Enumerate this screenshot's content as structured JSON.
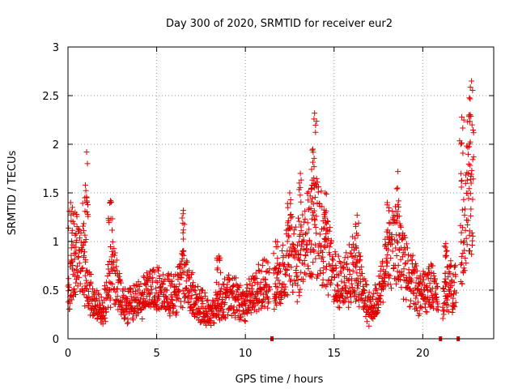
{
  "chart_data": {
    "type": "scatter",
    "title": "Day 300 of 2020, SRMTID for receiver eur2",
    "xlabel": "GPS time / hours",
    "ylabel": "SRMTID / TECUs",
    "xlim": [
      0,
      24
    ],
    "ylim": [
      0,
      3
    ],
    "x_ticks": [
      0,
      5,
      10,
      15,
      20
    ],
    "x_tick_labels": [
      "0",
      "5",
      "10",
      "15",
      "20"
    ],
    "y_ticks": [
      0,
      0.5,
      1,
      1.5,
      2,
      2.5,
      3
    ],
    "y_tick_labels": [
      "0",
      "0.5",
      "1",
      "1.5",
      "2",
      "2.5",
      "3"
    ],
    "grid": true,
    "marker": "+",
    "color": "#e00000",
    "series": [
      {
        "name": "eur2",
        "level_profile": [
          [
            0,
            0.45
          ],
          [
            0.3,
            0.75
          ],
          [
            0.6,
            0.9
          ],
          [
            1.0,
            0.6
          ],
          [
            1.5,
            0.35
          ],
          [
            2.0,
            0.3
          ],
          [
            2.5,
            0.75
          ],
          [
            2.8,
            0.55
          ],
          [
            3.2,
            0.35
          ],
          [
            4.0,
            0.4
          ],
          [
            4.5,
            0.5
          ],
          [
            5.0,
            0.55
          ],
          [
            5.5,
            0.5
          ],
          [
            6.0,
            0.45
          ],
          [
            6.5,
            0.65
          ],
          [
            7.0,
            0.45
          ],
          [
            7.5,
            0.35
          ],
          [
            8.0,
            0.25
          ],
          [
            8.5,
            0.35
          ],
          [
            9.0,
            0.45
          ],
          [
            9.5,
            0.42
          ],
          [
            10.0,
            0.35
          ],
          [
            10.5,
            0.5
          ],
          [
            11.0,
            0.6
          ],
          [
            11.5,
            0.55
          ],
          [
            12.0,
            0.6
          ],
          [
            12.5,
            0.95
          ],
          [
            13.0,
            0.75
          ],
          [
            13.5,
            1.05
          ],
          [
            14.0,
            1.2
          ],
          [
            14.5,
            0.95
          ],
          [
            15.0,
            0.65
          ],
          [
            15.5,
            0.55
          ],
          [
            16.0,
            0.75
          ],
          [
            16.5,
            0.6
          ],
          [
            17.0,
            0.3
          ],
          [
            17.5,
            0.45
          ],
          [
            18.0,
            0.8
          ],
          [
            18.5,
            1.0
          ],
          [
            19.0,
            0.75
          ],
          [
            19.5,
            0.55
          ],
          [
            20.0,
            0.5
          ],
          [
            20.5,
            0.55
          ],
          [
            20.8,
            0.45
          ],
          [
            21.0,
            0.4
          ],
          [
            21.5,
            0.55
          ],
          [
            22.0,
            0.6
          ],
          [
            22.5,
            1.4
          ],
          [
            22.8,
            1.6
          ]
        ],
        "peaks": [
          [
            0.15,
            1.4
          ],
          [
            0.4,
            1.3
          ],
          [
            0.95,
            1.45
          ],
          [
            1.05,
            1.92
          ],
          [
            2.4,
            1.42
          ],
          [
            6.5,
            1.32
          ],
          [
            8.5,
            0.85
          ],
          [
            11.7,
            1.0
          ],
          [
            12.5,
            1.5
          ],
          [
            13.1,
            1.7
          ],
          [
            13.8,
            1.95
          ],
          [
            13.9,
            2.32
          ],
          [
            14.5,
            1.5
          ],
          [
            16.3,
            1.27
          ],
          [
            18.0,
            1.4
          ],
          [
            18.6,
            1.72
          ],
          [
            21.3,
            0.98
          ],
          [
            22.2,
            2.28
          ],
          [
            22.6,
            2.3
          ],
          [
            22.75,
            2.65
          ]
        ],
        "data_gaps": [
          11.5,
          21.0,
          22.0
        ]
      }
    ]
  }
}
